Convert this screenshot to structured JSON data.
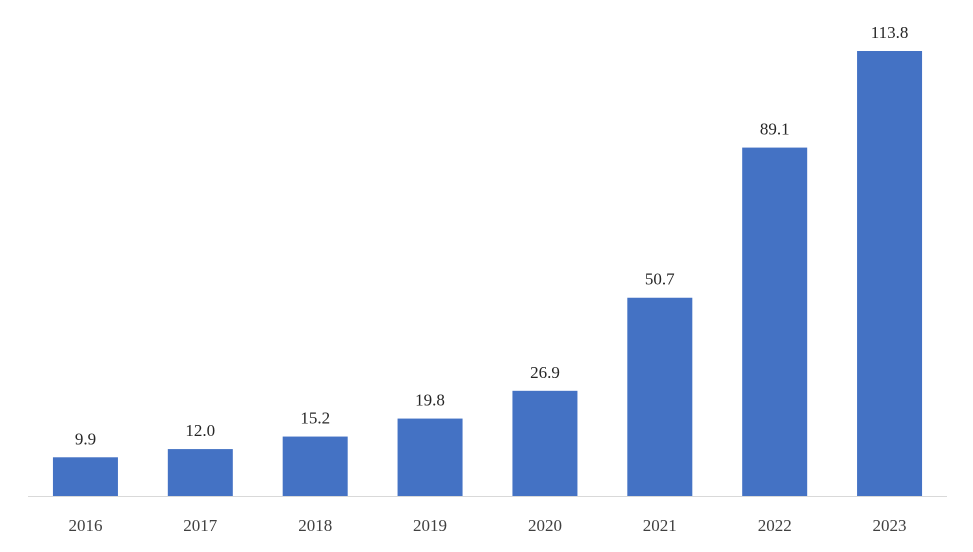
{
  "chart_data": {
    "type": "bar",
    "categories": [
      "2016",
      "2017",
      "2018",
      "2019",
      "2020",
      "2021",
      "2022",
      "2023"
    ],
    "values": [
      9.9,
      12.0,
      15.2,
      19.8,
      26.9,
      50.7,
      89.1,
      113.8
    ],
    "data_labels": [
      "9.9",
      "12.0",
      "15.2",
      "19.8",
      "26.9",
      "50.7",
      "89.1",
      "113.8"
    ],
    "title": "",
    "xlabel": "",
    "ylabel": "",
    "ylim": [
      0,
      113.8
    ],
    "grid": false,
    "legend": "none",
    "bar_color": "#4472C4",
    "axis_color": "#D9D9D9"
  }
}
